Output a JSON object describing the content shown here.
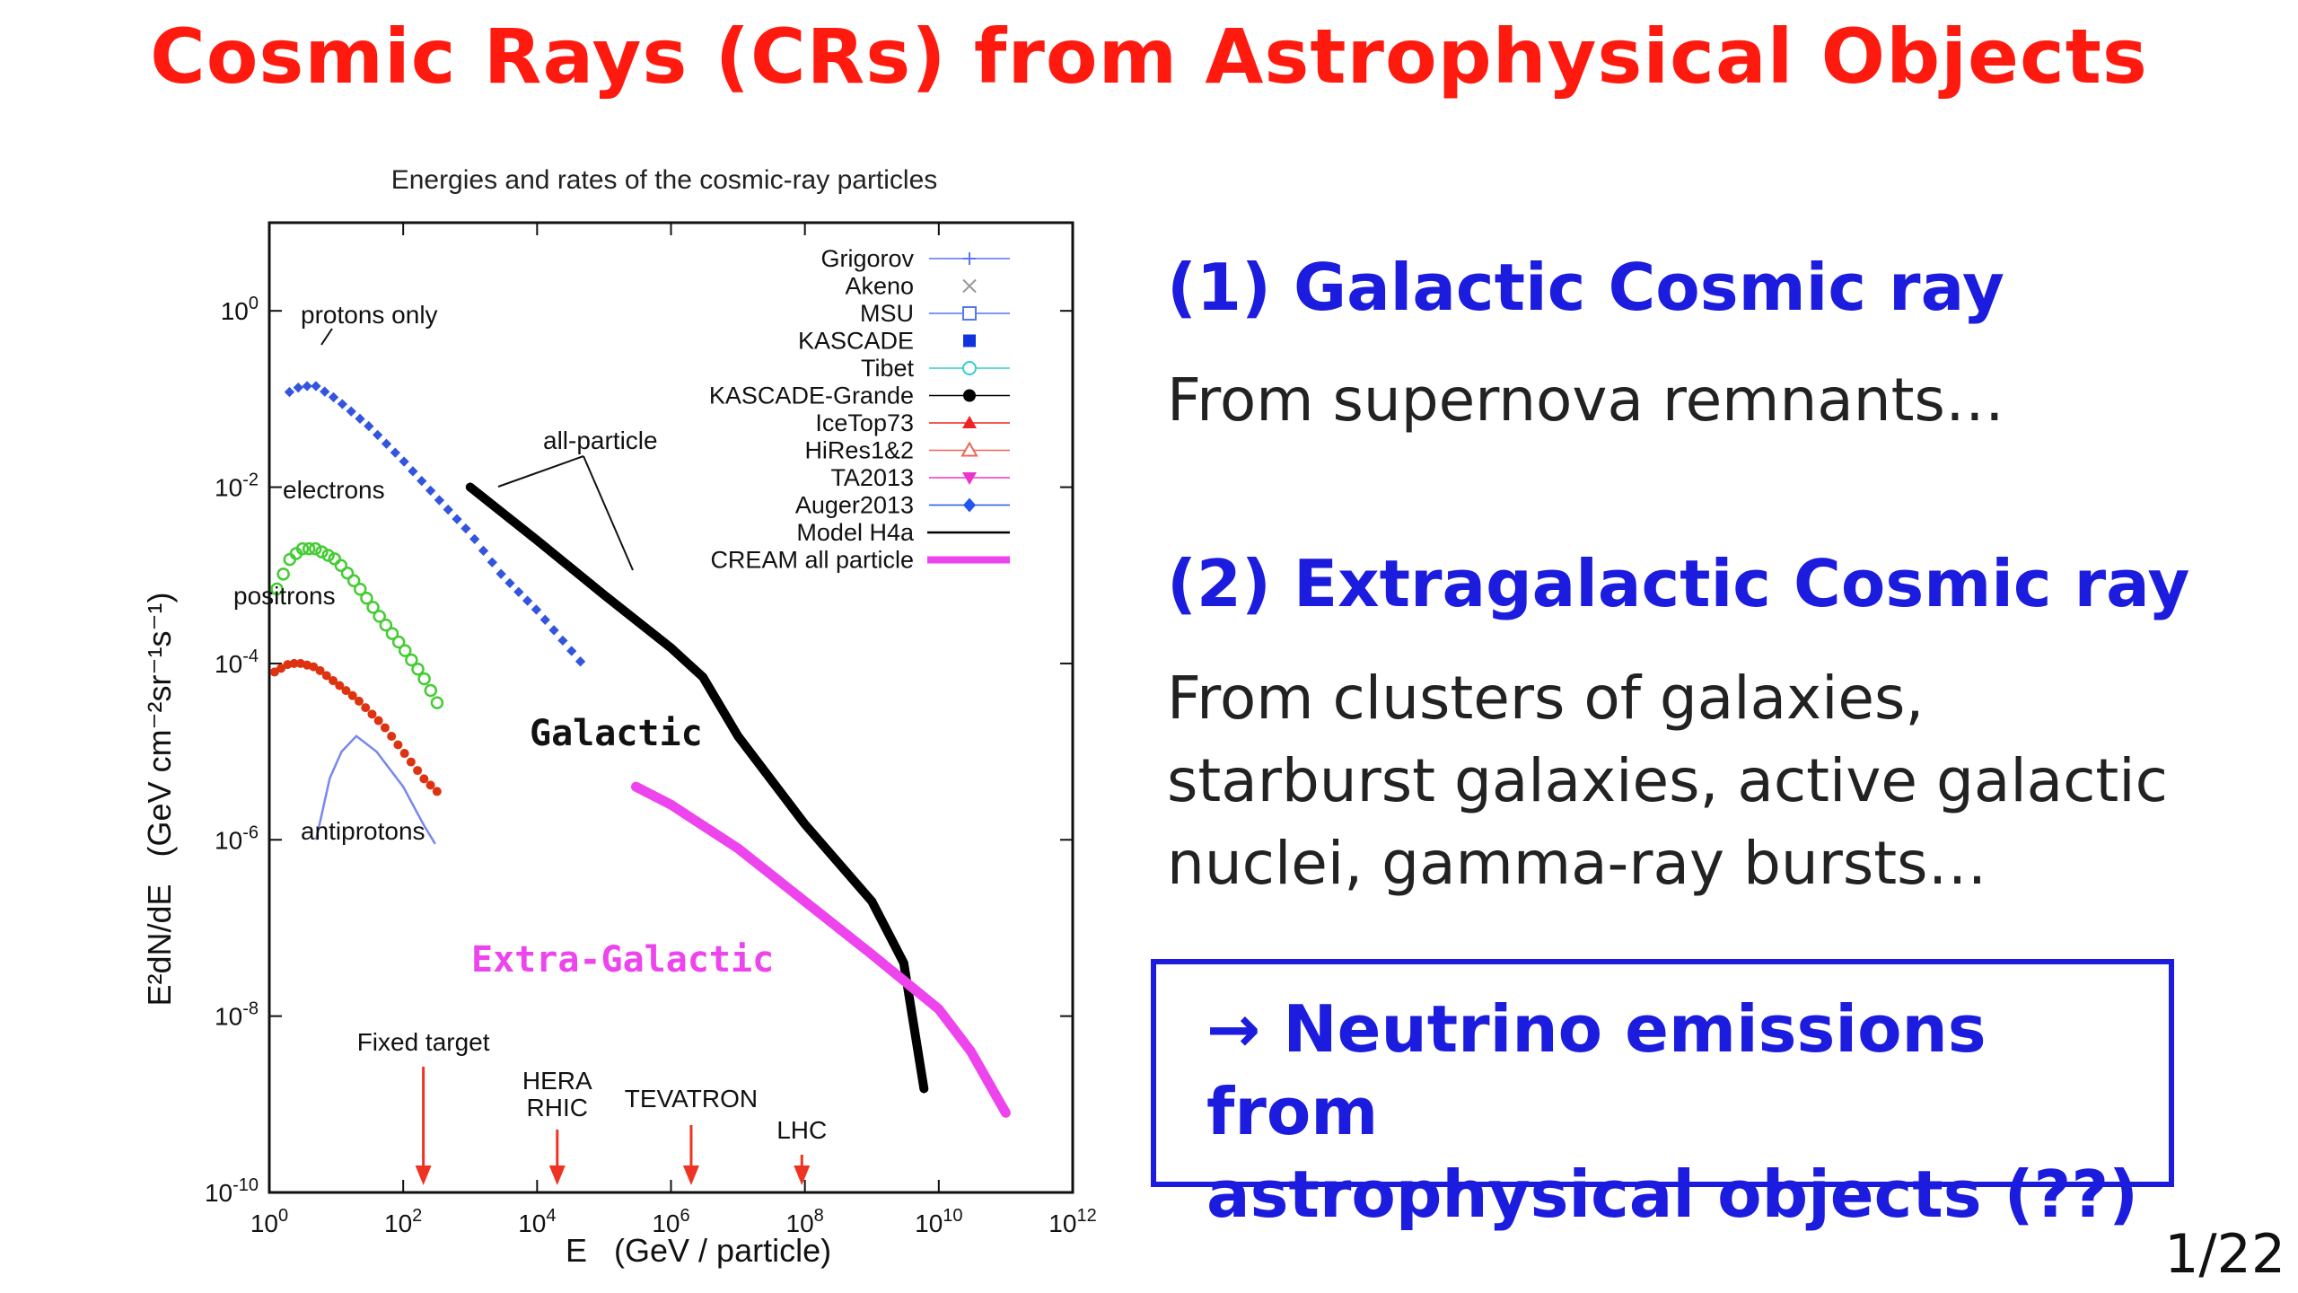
{
  "slide": {
    "title": "Cosmic Rays (CRs) from Astrophysical Objects",
    "page": "1/22"
  },
  "sections": [
    {
      "heading": "(1) Galactic Cosmic ray",
      "text": [
        "From supernova remnants…"
      ]
    },
    {
      "heading": "(2) Extragalactic Cosmic ray",
      "text": [
        "From clusters of galaxies,",
        "starburst galaxies, active galactic",
        "nuclei, gamma-ray bursts…"
      ]
    }
  ],
  "callout": {
    "lines": [
      "→ Neutrino emissions from",
      "astrophysical objects (??)"
    ]
  },
  "colors": {
    "title": "#ff1a0f",
    "heading": "#1c1cde",
    "extragalactic": "#ee44ee",
    "galactic": "#000000"
  },
  "chart_data": {
    "type": "scatter",
    "title": "Energies and rates of the cosmic-ray particles",
    "xlabel": "E   (GeV / particle)",
    "ylabel": "E²dN/dE   (GeV cm⁻²sr⁻¹s⁻¹)",
    "xscale": "log",
    "yscale": "log",
    "xlim": [
      1,
      1000000000000.0
    ],
    "ylim": [
      1e-10,
      10
    ],
    "x_ticks": [
      {
        "v": 1,
        "base": "10",
        "exp": "0"
      },
      {
        "v": 100,
        "base": "10",
        "exp": "2"
      },
      {
        "v": 10000.0,
        "base": "10",
        "exp": "4"
      },
      {
        "v": 1000000.0,
        "base": "10",
        "exp": "6"
      },
      {
        "v": 100000000.0,
        "base": "10",
        "exp": "8"
      },
      {
        "v": 10000000000.0,
        "base": "10",
        "exp": "10"
      },
      {
        "v": 1000000000000.0,
        "base": "10",
        "exp": "12"
      }
    ],
    "y_ticks": [
      {
        "v": 1,
        "base": "10",
        "exp": "0"
      },
      {
        "v": 0.01,
        "base": "10",
        "exp": "-2"
      },
      {
        "v": 0.0001,
        "base": "10",
        "exp": "-4"
      },
      {
        "v": 1e-06,
        "base": "10",
        "exp": "-6"
      },
      {
        "v": 1e-08,
        "base": "10",
        "exp": "-8"
      },
      {
        "v": 1e-10,
        "base": "10",
        "exp": "-10"
      }
    ],
    "legend_position": "top-right",
    "legend": [
      {
        "name": "Grigorov",
        "color": "#5577ee",
        "marker": "plus"
      },
      {
        "name": "Akeno",
        "color": "#999999",
        "marker": "x"
      },
      {
        "name": "MSU",
        "color": "#5577ee",
        "marker": "square-open"
      },
      {
        "name": "KASCADE",
        "color": "#1133dd",
        "marker": "square"
      },
      {
        "name": "Tibet",
        "color": "#33cccc",
        "marker": "circle-open"
      },
      {
        "name": "KASCADE-Grande",
        "color": "#000000",
        "marker": "circle"
      },
      {
        "name": "IceTop73",
        "color": "#ee2222",
        "marker": "triangle"
      },
      {
        "name": "HiRes1&2",
        "color": "#ee6655",
        "marker": "triangle-open"
      },
      {
        "name": "TA2013",
        "color": "#ee33cc",
        "marker": "triangle-down"
      },
      {
        "name": "Auger2013",
        "color": "#2255ee",
        "marker": "diamond"
      },
      {
        "name": "Model H4a",
        "color": "#000000",
        "marker": "line"
      },
      {
        "name": "CREAM all particle",
        "color": "#ee44ee",
        "marker": "thick-line"
      }
    ],
    "series": [
      {
        "name": "protons only",
        "color": "#3355dd",
        "points": [
          [
            2,
            0.12
          ],
          [
            3,
            0.14
          ],
          [
            5,
            0.14
          ],
          [
            10,
            0.1
          ],
          [
            30,
            0.05
          ],
          [
            100,
            0.02
          ],
          [
            300,
            0.008
          ],
          [
            1000,
            0.003
          ],
          [
            3000,
            0.001
          ],
          [
            10000,
            0.0004
          ],
          [
            30000,
            0.00015
          ],
          [
            60000,
            8e-05
          ]
        ]
      },
      {
        "name": "electrons",
        "color": "#44cc33",
        "points": [
          [
            1.3,
            0.0007
          ],
          [
            2,
            0.0015
          ],
          [
            3,
            0.002
          ],
          [
            5,
            0.002
          ],
          [
            10,
            0.0015
          ],
          [
            20,
            0.0008
          ],
          [
            50,
            0.0003
          ],
          [
            100,
            0.00015
          ],
          [
            200,
            7e-05
          ],
          [
            300,
            4e-05
          ],
          [
            400,
            2.5e-05
          ]
        ]
      },
      {
        "name": "positrons",
        "color": "#dd3311",
        "points": [
          [
            1.2,
            8e-05
          ],
          [
            2,
            0.0001
          ],
          [
            3,
            0.0001
          ],
          [
            5,
            9e-05
          ],
          [
            10,
            6e-05
          ],
          [
            20,
            4e-05
          ],
          [
            50,
            2e-05
          ],
          [
            100,
            1e-05
          ],
          [
            200,
            5e-06
          ],
          [
            400,
            3e-06
          ]
        ]
      },
      {
        "name": "antiprotons",
        "color": "#7788ee",
        "points": [
          [
            5,
            1e-06
          ],
          [
            8,
            5e-06
          ],
          [
            12,
            1e-05
          ],
          [
            20,
            1.5e-05
          ],
          [
            40,
            1e-05
          ],
          [
            100,
            4e-06
          ],
          [
            200,
            1.5e-06
          ],
          [
            300,
            9e-07
          ]
        ]
      },
      {
        "name": "all-particle",
        "color": "#000000",
        "points": [
          [
            1000,
            0.01
          ],
          [
            10000.0,
            0.0025
          ],
          [
            100000.0,
            0.0006
          ],
          [
            1000000.0,
            0.00015
          ],
          [
            3000000.0,
            7e-05
          ],
          [
            10000000.0,
            1.5e-05
          ],
          [
            100000000.0,
            1.5e-06
          ],
          [
            1000000000.0,
            2e-07
          ],
          [
            3000000000.0,
            4e-08
          ],
          [
            6000000000.0,
            1.5e-09
          ]
        ]
      },
      {
        "name": "Extra-Galactic",
        "color": "#ee44ee",
        "points": [
          [
            300000.0,
            4e-06
          ],
          [
            1000000.0,
            2.5e-06
          ],
          [
            10000000.0,
            8e-07
          ],
          [
            100000000.0,
            2e-07
          ],
          [
            1000000000.0,
            5e-08
          ],
          [
            10000000000.0,
            1.2e-08
          ],
          [
            30000000000.0,
            4e-09
          ],
          [
            100000000000.0,
            8e-10
          ]
        ]
      }
    ],
    "annotations": {
      "protons_only": "protons only",
      "electrons": "electrons",
      "positrons": "positrons",
      "antiprotons": "antiprotons",
      "all_particle": "all-particle",
      "galactic": "Galactic",
      "extra_galactic": "Extra-Galactic"
    },
    "markers": [
      {
        "label": "Fixed target",
        "x": 200
      },
      {
        "label": "HERA",
        "x": 30000
      },
      {
        "label": "RHIC",
        "x": 20000
      },
      {
        "label": "TEVATRON",
        "x": 2000000
      },
      {
        "label": "LHC",
        "x": 90000000
      }
    ]
  }
}
